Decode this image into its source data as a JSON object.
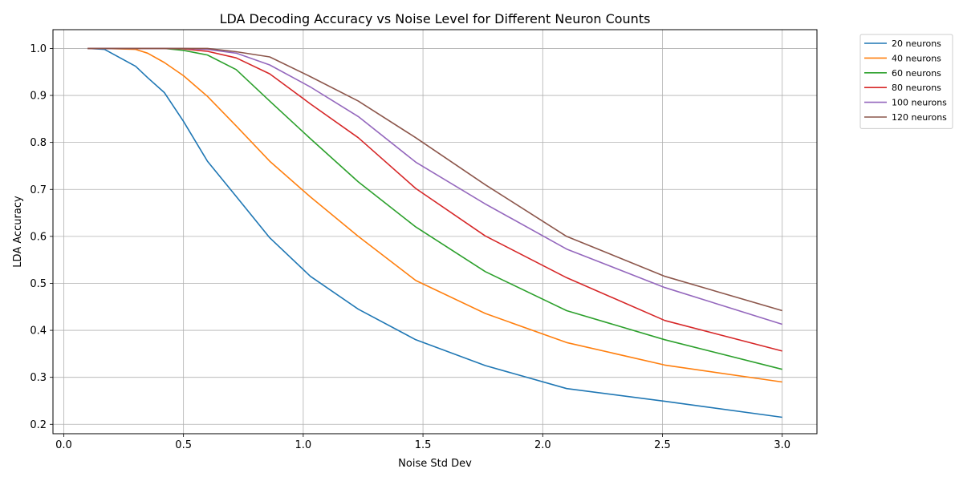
{
  "chart_data": {
    "type": "line",
    "title": "LDA Decoding Accuracy vs Noise Level for Different Neuron Counts",
    "xlabel": "Noise Std Dev",
    "ylabel": "LDA Accuracy",
    "xlim": [
      -0.045,
      3.145
    ],
    "ylim": [
      0.18,
      1.04
    ],
    "xticks": [
      0.0,
      0.5,
      1.0,
      1.5,
      2.0,
      2.5,
      3.0
    ],
    "xtick_labels": [
      "0.0",
      "0.5",
      "1.0",
      "1.5",
      "2.0",
      "2.5",
      "3.0"
    ],
    "yticks": [
      0.2,
      0.3,
      0.4,
      0.5,
      0.6,
      0.7,
      0.8,
      0.9,
      1.0
    ],
    "ytick_labels": [
      "0.2",
      "0.3",
      "0.4",
      "0.5",
      "0.6",
      "0.7",
      "0.8",
      "0.9",
      "1.0"
    ],
    "grid": true,
    "legend_position": "outside-top-right",
    "x": [
      0.1,
      0.17,
      0.3,
      0.35,
      0.42,
      0.5,
      0.6,
      0.72,
      0.86,
      1.03,
      1.23,
      1.47,
      1.76,
      2.1,
      2.51,
      3.0
    ],
    "series": [
      {
        "name": "20 neurons",
        "color": "#1f77b4",
        "values": [
          1.0,
          0.998,
          0.962,
          0.938,
          0.906,
          0.845,
          0.76,
          0.685,
          0.597,
          0.515,
          0.445,
          0.38,
          0.325,
          0.276,
          0.249,
          0.215
        ]
      },
      {
        "name": "40 neurons",
        "color": "#ff7f0e",
        "values": [
          1.0,
          1.0,
          0.998,
          0.99,
          0.97,
          0.942,
          0.898,
          0.835,
          0.76,
          0.684,
          0.6,
          0.506,
          0.436,
          0.374,
          0.326,
          0.29
        ]
      },
      {
        "name": "60 neurons",
        "color": "#2ca02c",
        "values": [
          1.0,
          1.0,
          1.0,
          1.0,
          1.0,
          0.996,
          0.986,
          0.955,
          0.888,
          0.808,
          0.716,
          0.62,
          0.525,
          0.442,
          0.38,
          0.317
        ]
      },
      {
        "name": "80 neurons",
        "color": "#d62728",
        "values": [
          1.0,
          1.0,
          1.0,
          1.0,
          1.0,
          0.999,
          0.994,
          0.98,
          0.946,
          0.882,
          0.81,
          0.702,
          0.601,
          0.512,
          0.421,
          0.356
        ]
      },
      {
        "name": "100 neurons",
        "color": "#9467bd",
        "values": [
          1.0,
          1.0,
          1.0,
          1.0,
          1.0,
          1.0,
          0.998,
          0.99,
          0.965,
          0.918,
          0.855,
          0.758,
          0.669,
          0.573,
          0.491,
          0.413
        ]
      },
      {
        "name": "120 neurons",
        "color": "#8c564b",
        "values": [
          1.0,
          1.0,
          1.0,
          1.0,
          1.0,
          1.0,
          1.0,
          0.993,
          0.982,
          0.94,
          0.888,
          0.81,
          0.71,
          0.6,
          0.515,
          0.442
        ]
      }
    ]
  }
}
